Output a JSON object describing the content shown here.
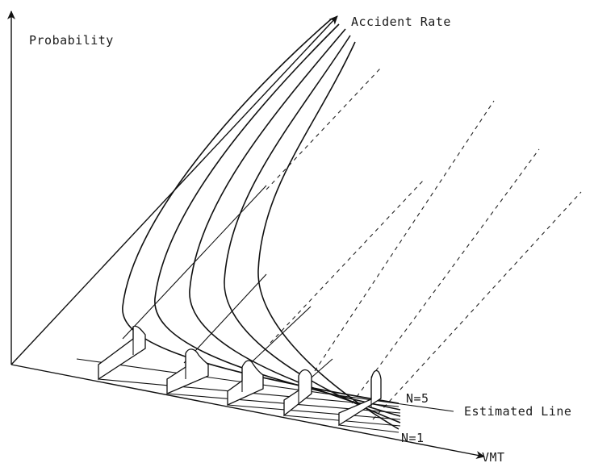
{
  "labels": {
    "y_axis": "Probability",
    "depth_axis": "Accident Rate",
    "x_axis": "VMT",
    "estimated_line": "Estimated Line",
    "n_top": "N=5",
    "n_bottom": "N=1"
  },
  "colors": {
    "ink": "#111111",
    "background": "#ffffff"
  }
}
